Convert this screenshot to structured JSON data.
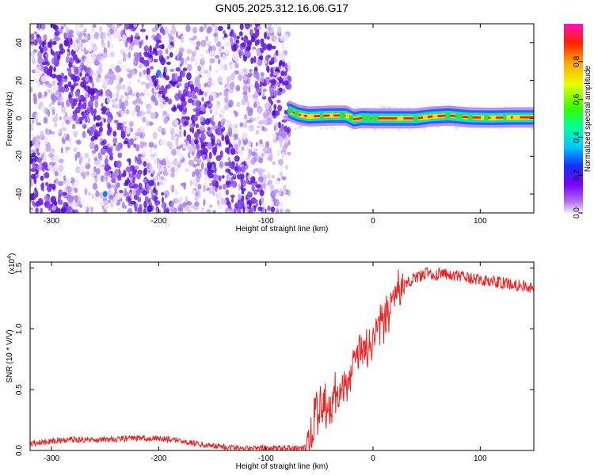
{
  "figure_title": "GN05.2025.312.16.06.G17",
  "chart_data": [
    {
      "type": "heatmap",
      "title": "GN05.2025.312.16.06.G17",
      "xlabel": "Height of straight line (km)",
      "ylabel": "Frequency (Hz)",
      "xlim": [
        -320,
        150
      ],
      "ylim": [
        -50,
        50
      ],
      "x_ticks": [
        -300,
        -200,
        -100,
        0,
        100
      ],
      "x_tick_labels": [
        "-300",
        "-200",
        "-100",
        "0",
        "100"
      ],
      "y_ticks": [
        -40,
        -20,
        0,
        20,
        40
      ],
      "y_tick_labels": [
        "-40",
        "-20",
        "0",
        "20",
        "40"
      ],
      "noise_region": [
        -320,
        -78
      ],
      "tracked_signal": {
        "x": [
          -78,
          -70,
          -60,
          -40,
          -25,
          -18,
          -10,
          0,
          20,
          40,
          55,
          70,
          90,
          110,
          130,
          150
        ],
        "frequency_hz": [
          4,
          2,
          1,
          1.5,
          1.5,
          -0.5,
          0.2,
          0,
          0,
          0,
          1,
          1.5,
          0.5,
          0.3,
          0.5,
          0.5
        ],
        "normalized_amplitude": [
          0.35,
          0.6,
          0.85,
          0.9,
          0.9,
          0.85,
          0.9,
          0.95,
          0.95,
          0.95,
          0.95,
          0.95,
          0.95,
          0.9,
          0.9,
          0.9
        ]
      },
      "colorbar": {
        "label": "Normalized spectral amplitude",
        "range": [
          0,
          1
        ],
        "ticks": [
          0,
          0.2,
          0.4,
          0.6,
          0.8
        ],
        "tick_labels": [
          "0.0",
          "0.2",
          "0.4",
          "0.6",
          "0.8"
        ]
      }
    },
    {
      "type": "line",
      "xlabel": "Height of straight line (km)",
      "ylabel": "SNR (10 * V/V)",
      "scale_label": "(x10",
      "scale_exponent": "4",
      "scale_close": ")",
      "xlim": [
        -320,
        150
      ],
      "ylim": [
        0,
        1.55
      ],
      "x_ticks": [
        -300,
        -200,
        -100,
        0,
        100
      ],
      "x_tick_labels": [
        "-300",
        "-200",
        "-100",
        "0",
        "100"
      ],
      "y_ticks": [
        0,
        0.5,
        1.0,
        1.5
      ],
      "y_tick_labels": [
        "0.0",
        "0.5",
        "1.0",
        "1.5"
      ],
      "series": [
        {
          "name": "SNR",
          "color": "#ee2222",
          "x": [
            -320,
            -300,
            -280,
            -250,
            -220,
            -200,
            -180,
            -160,
            -140,
            -120,
            -100,
            -80,
            -70,
            -62,
            -58,
            -54,
            -50,
            -45,
            -40,
            -35,
            -30,
            -25,
            -20,
            -15,
            -10,
            -5,
            0,
            5,
            10,
            15,
            20,
            25,
            30,
            40,
            50,
            60,
            70,
            80,
            100,
            120,
            150
          ],
          "y": [
            0.05,
            0.08,
            0.09,
            0.09,
            0.1,
            0.1,
            0.08,
            0.05,
            0.03,
            0.02,
            0.02,
            0.02,
            0.02,
            0.02,
            0.15,
            0.3,
            0.32,
            0.38,
            0.35,
            0.45,
            0.5,
            0.55,
            0.65,
            0.75,
            0.8,
            0.85,
            0.9,
            1.0,
            1.05,
            1.15,
            1.25,
            1.32,
            1.38,
            1.42,
            1.46,
            1.45,
            1.45,
            1.43,
            1.4,
            1.38,
            1.34
          ]
        }
      ]
    }
  ],
  "colors": {
    "signal_line": "#ee2222",
    "noise_speckle": "#7020e8",
    "axes": "#000000"
  }
}
